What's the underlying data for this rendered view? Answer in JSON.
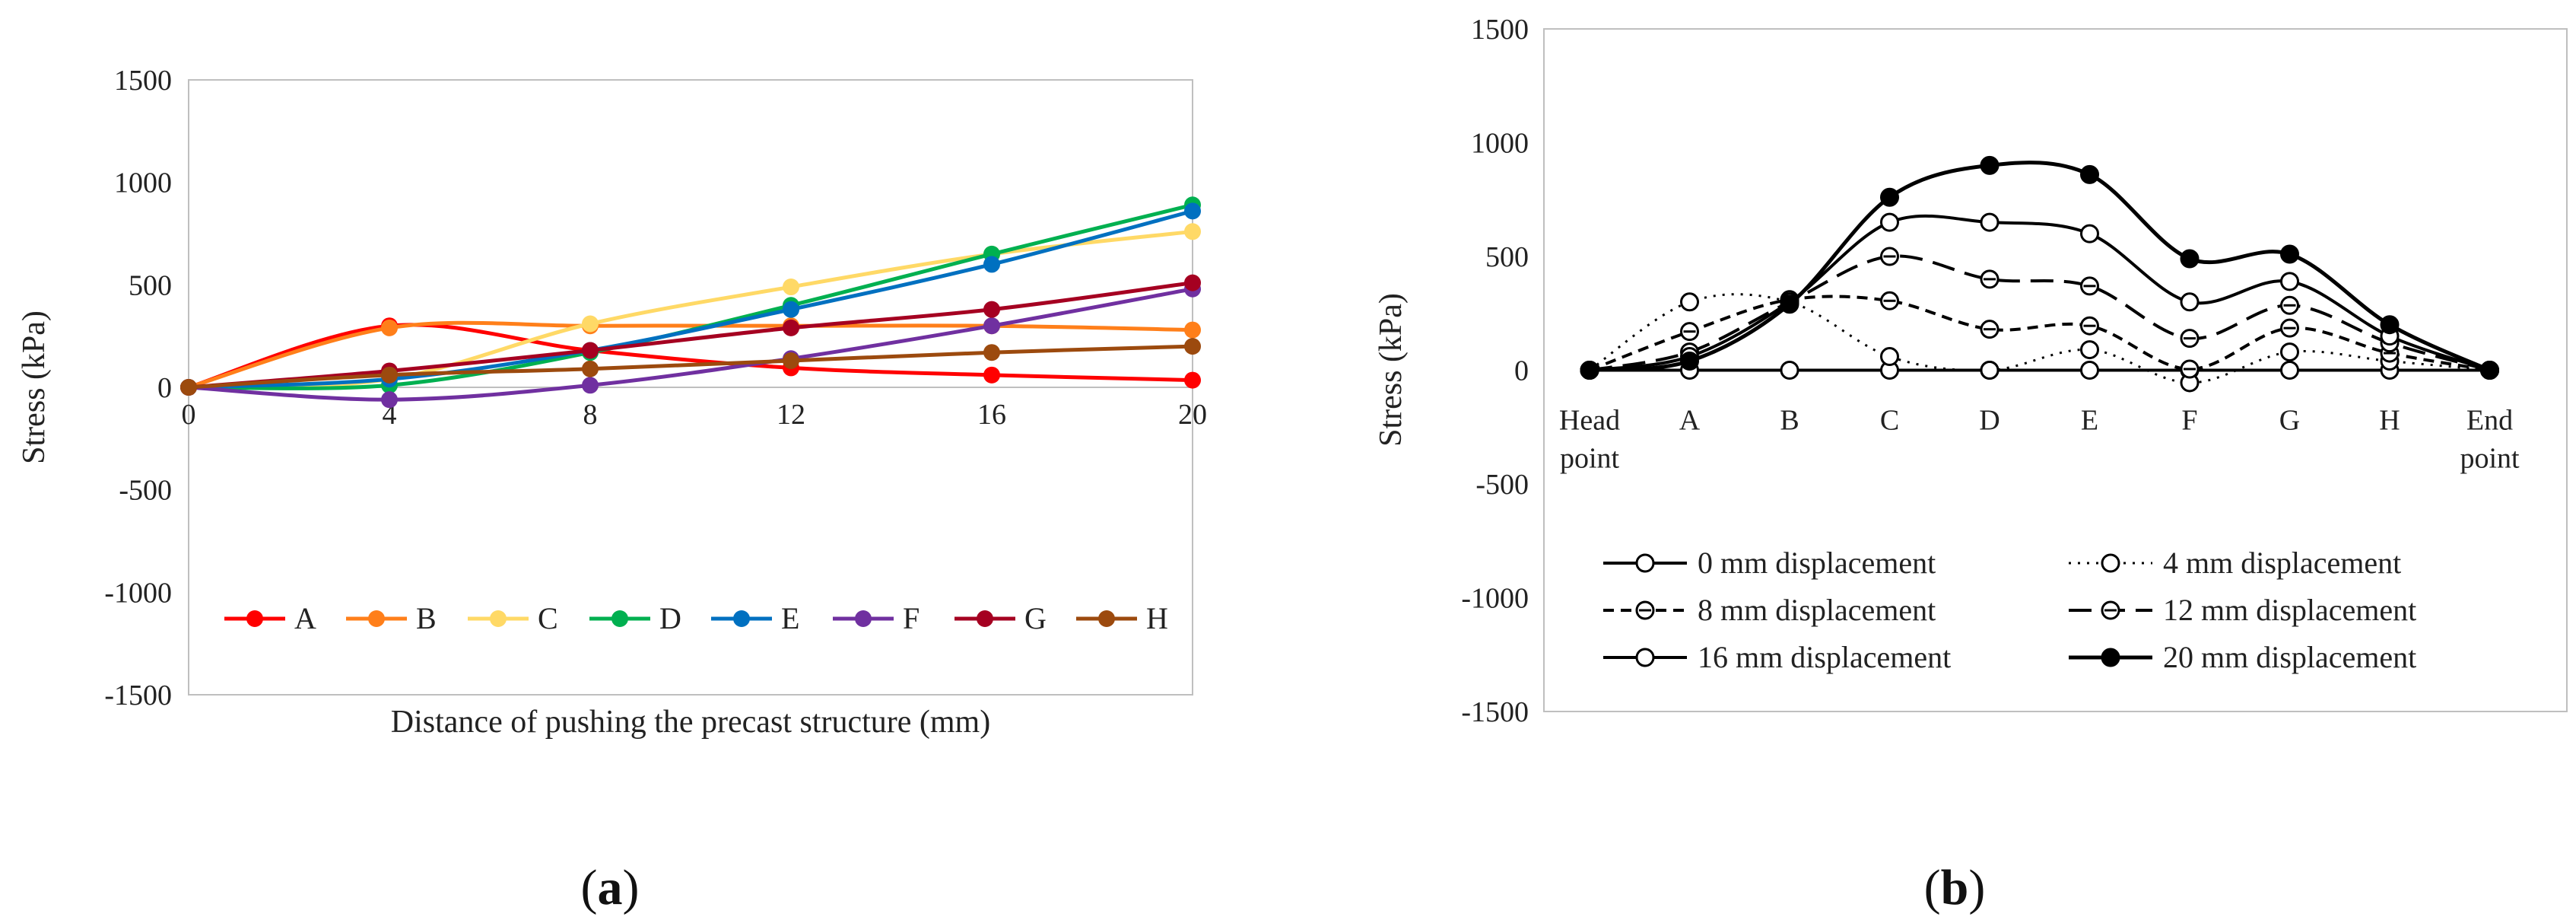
{
  "chart_data": [
    {
      "type": "line",
      "panel_label": "a",
      "xlabel": "Distance of pushing the precast structure (mm)",
      "ylabel": "Stress (kPa)",
      "x": [
        0,
        4,
        8,
        12,
        16,
        20
      ],
      "xticks": [
        "0",
        "4",
        "8",
        "12",
        "16",
        "20"
      ],
      "ylim": [
        -1500,
        1500
      ],
      "yticks": [
        "1500",
        "1000",
        "500",
        "0",
        "-500",
        "-1000",
        "-1500"
      ],
      "legend_position": "bottom",
      "series": [
        {
          "name": "A",
          "color": "#ff0000",
          "values": [
            0,
            300,
            180,
            95,
            60,
            35
          ]
        },
        {
          "name": "B",
          "color": "#ff7f1a",
          "values": [
            0,
            290,
            300,
            300,
            300,
            280
          ]
        },
        {
          "name": "C",
          "color": "#ffd966",
          "values": [
            0,
            40,
            310,
            490,
            650,
            760
          ]
        },
        {
          "name": "D",
          "color": "#00b050",
          "values": [
            0,
            10,
            170,
            400,
            650,
            890
          ]
        },
        {
          "name": "E",
          "color": "#0070c0",
          "values": [
            0,
            40,
            180,
            380,
            600,
            860
          ]
        },
        {
          "name": "F",
          "color": "#7030a0",
          "values": [
            0,
            -60,
            10,
            140,
            300,
            480
          ]
        },
        {
          "name": "G",
          "color": "#a50021",
          "values": [
            0,
            80,
            180,
            290,
            380,
            510
          ]
        },
        {
          "name": "H",
          "color": "#9c4a0e",
          "values": [
            0,
            60,
            90,
            130,
            170,
            200
          ]
        }
      ]
    },
    {
      "type": "line",
      "panel_label": "b",
      "xlabel": "",
      "ylabel": "Stress (kPa)",
      "categories": [
        "Head\npoint",
        "A",
        "B",
        "C",
        "D",
        "E",
        "F",
        "G",
        "H",
        "End\npoint"
      ],
      "ylim": [
        -1500,
        1500
      ],
      "yticks": [
        "1500",
        "1000",
        "500",
        "0",
        "-500",
        "-1000",
        "-1500"
      ],
      "legend_position": "bottom",
      "series": [
        {
          "name": "0 mm displacement",
          "values": [
            0,
            0,
            0,
            0,
            0,
            0,
            0,
            0,
            0,
            0
          ]
        },
        {
          "name": "4 mm displacement",
          "values": [
            0,
            300,
            300,
            60,
            0,
            90,
            -55,
            80,
            40,
            0
          ]
        },
        {
          "name": "8 mm displacement",
          "values": [
            0,
            170,
            310,
            305,
            180,
            195,
            5,
            185,
            75,
            0
          ]
        },
        {
          "name": "12 mm displacement",
          "values": [
            0,
            80,
            300,
            500,
            400,
            370,
            140,
            285,
            120,
            0
          ]
        },
        {
          "name": "16 mm displacement",
          "values": [
            0,
            60,
            300,
            650,
            650,
            600,
            300,
            390,
            150,
            0
          ]
        },
        {
          "name": "20 mm displacement",
          "values": [
            0,
            40,
            290,
            760,
            900,
            860,
            490,
            510,
            200,
            0
          ]
        }
      ]
    }
  ]
}
